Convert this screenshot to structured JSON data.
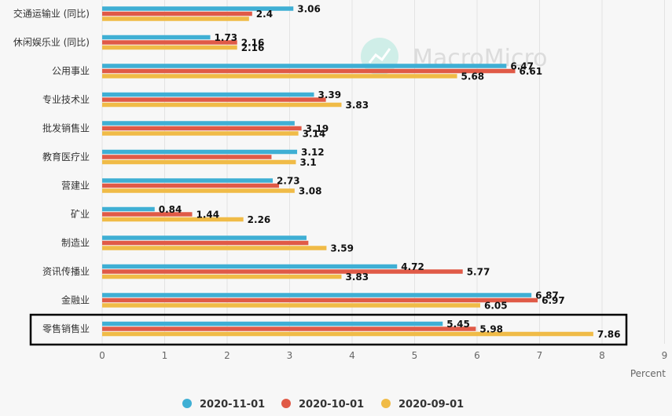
{
  "chart_data": {
    "type": "bar",
    "orientation": "horizontal",
    "categories": [
      "交通运输业 (同比)",
      "休闲娱乐业 (同比)",
      "公用事业",
      "专业技术业",
      "批发销售业",
      "教育医疗业",
      "营建业",
      "矿业",
      "制造业",
      "资讯传播业",
      "金融业",
      "零售销售业"
    ],
    "series": [
      {
        "name": "2020-11-01",
        "color": "#3fafd4",
        "values": [
          3.06,
          1.73,
          6.47,
          3.39,
          3.08,
          3.12,
          2.73,
          0.84,
          3.27,
          4.72,
          6.87,
          5.45
        ],
        "labels": [
          "3.06",
          "1.73",
          "6.47",
          "3.39",
          "",
          "3.12",
          "2.73",
          "0.84",
          "",
          "4.72",
          "6.87",
          "5.45"
        ]
      },
      {
        "name": "2020-10-01",
        "color": "#e05a47",
        "values": [
          2.4,
          2.16,
          6.61,
          3.58,
          3.19,
          2.71,
          2.83,
          1.44,
          3.3,
          5.77,
          6.97,
          5.98
        ],
        "labels": [
          "2.4",
          "2.16",
          "6.61",
          "",
          "3.19",
          "",
          "",
          "1.44",
          "",
          "5.77",
          "6.97",
          "5.98"
        ]
      },
      {
        "name": "2020-09-01",
        "color": "#f0bb47",
        "values": [
          2.35,
          2.16,
          5.68,
          3.83,
          3.14,
          3.1,
          3.08,
          2.26,
          3.59,
          3.83,
          6.05,
          7.86
        ],
        "labels": [
          "",
          "2.16",
          "5.68",
          "3.83",
          "3.14",
          "3.1",
          "3.08",
          "2.26",
          "3.59",
          "3.83",
          "6.05",
          "7.86"
        ]
      }
    ],
    "xlim": [
      0,
      9
    ],
    "xticks": [
      "0",
      "1",
      "2",
      "3",
      "4",
      "5",
      "6",
      "7",
      "8",
      "9"
    ],
    "xlabel": "Percent",
    "grid": true,
    "legend": "bottom",
    "highlight_category": "零售销售业",
    "watermark": "MacroMicro"
  }
}
